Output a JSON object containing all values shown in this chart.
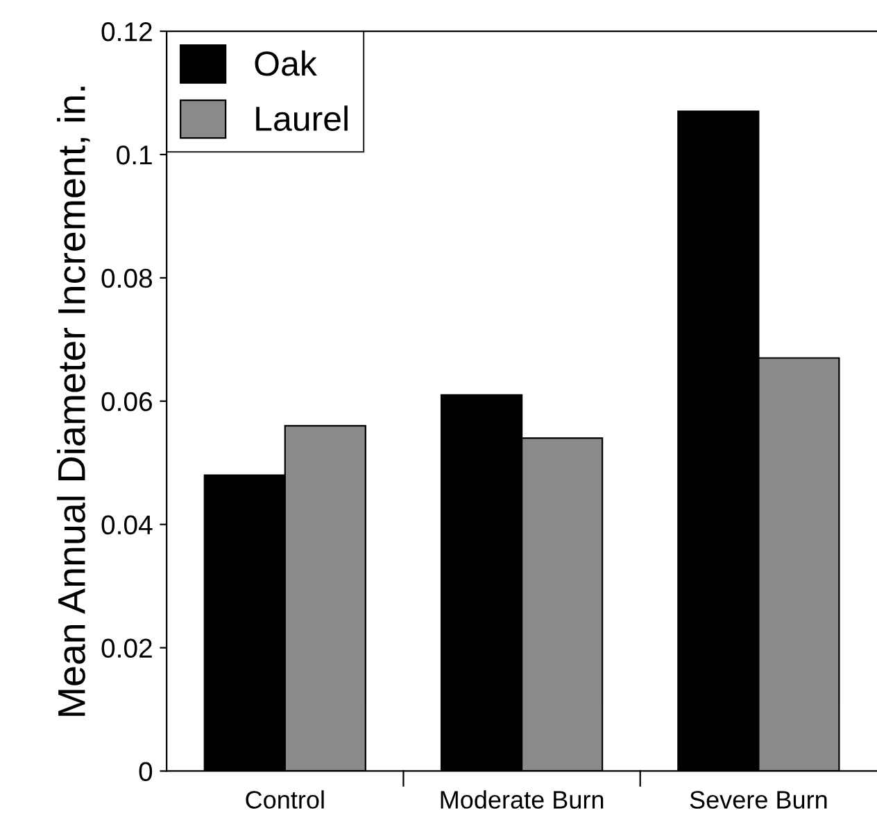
{
  "chart_data": {
    "type": "bar",
    "ylabel": "Mean Annual Diameter Increment, in.",
    "categories": [
      "Control",
      "Moderate Burn",
      "Severe Burn"
    ],
    "series": [
      {
        "name": "Oak",
        "color": "#000000",
        "values": [
          0.048,
          0.061,
          0.107
        ]
      },
      {
        "name": "Laurel",
        "color": "#8a8a8a",
        "values": [
          0.056,
          0.054,
          0.067
        ]
      }
    ],
    "ylim": [
      0,
      0.12
    ],
    "yticks": [
      0,
      0.02,
      0.04,
      0.06,
      0.08,
      0.1,
      0.12
    ],
    "legend": "top left"
  }
}
